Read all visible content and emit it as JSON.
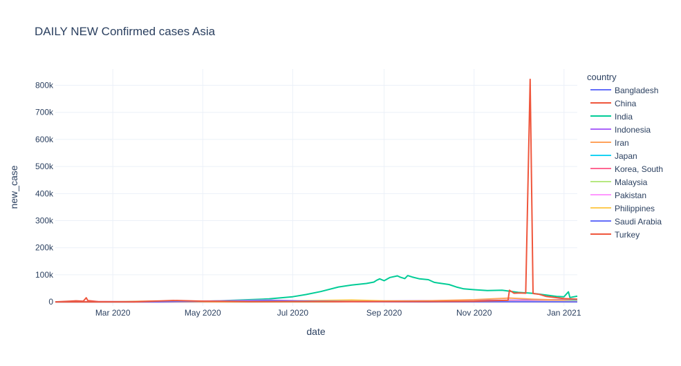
{
  "chart_data": {
    "type": "line",
    "title": "DAILY NEW Confirmed cases Asia",
    "xlabel": "date",
    "ylabel": "new_case",
    "x_range": [
      "2020-01-22",
      "2021-01-10"
    ],
    "ylim": [
      -15000,
      860000
    ],
    "x_ticks": [
      {
        "date": "2020-03-01",
        "label": "Mar 2020"
      },
      {
        "date": "2020-05-01",
        "label": "May 2020"
      },
      {
        "date": "2020-07-01",
        "label": "Jul 2020"
      },
      {
        "date": "2020-09-01",
        "label": "Sep 2020"
      },
      {
        "date": "2020-11-01",
        "label": "Nov 2020"
      },
      {
        "date": "2021-01-01",
        "label": "Jan 2021"
      }
    ],
    "y_ticks": [
      {
        "value": 0,
        "label": "0"
      },
      {
        "value": 100000,
        "label": "100k"
      },
      {
        "value": 200000,
        "label": "200k"
      },
      {
        "value": 300000,
        "label": "300k"
      },
      {
        "value": 400000,
        "label": "400k"
      },
      {
        "value": 500000,
        "label": "500k"
      },
      {
        "value": 600000,
        "label": "600k"
      },
      {
        "value": 700000,
        "label": "700k"
      },
      {
        "value": 800000,
        "label": "800k"
      }
    ],
    "grid": true,
    "legend_title": "country",
    "legend_position": "right",
    "series": [
      {
        "name": "Bangladesh",
        "color": "#636efa",
        "points": [
          [
            "2020-01-22",
            0
          ],
          [
            "2020-04-01",
            0
          ],
          [
            "2020-05-01",
            600
          ],
          [
            "2020-06-01",
            2500
          ],
          [
            "2020-07-01",
            3800
          ],
          [
            "2020-08-01",
            2700
          ],
          [
            "2020-09-01",
            2000
          ],
          [
            "2020-10-01",
            1400
          ],
          [
            "2020-11-01",
            1700
          ],
          [
            "2020-12-01",
            2200
          ],
          [
            "2021-01-10",
            800
          ]
        ]
      },
      {
        "name": "China",
        "color": "#ef553b",
        "points": [
          [
            "2020-01-22",
            100
          ],
          [
            "2020-02-01",
            2600
          ],
          [
            "2020-02-05",
            3800
          ],
          [
            "2020-02-10",
            2500
          ],
          [
            "2020-02-12",
            15000
          ],
          [
            "2020-02-13",
            5000
          ],
          [
            "2020-02-20",
            800
          ],
          [
            "2020-03-01",
            200
          ],
          [
            "2020-04-01",
            50
          ],
          [
            "2020-06-01",
            20
          ],
          [
            "2020-09-01",
            20
          ],
          [
            "2020-12-01",
            20
          ],
          [
            "2021-01-10",
            100
          ]
        ]
      },
      {
        "name": "India",
        "color": "#00cc96",
        "points": [
          [
            "2020-01-22",
            0
          ],
          [
            "2020-03-01",
            0
          ],
          [
            "2020-04-01",
            400
          ],
          [
            "2020-05-01",
            1800
          ],
          [
            "2020-06-01",
            8000
          ],
          [
            "2020-06-15",
            11000
          ],
          [
            "2020-07-01",
            19000
          ],
          [
            "2020-07-10",
            27000
          ],
          [
            "2020-07-20",
            38000
          ],
          [
            "2020-08-01",
            55000
          ],
          [
            "2020-08-10",
            62000
          ],
          [
            "2020-08-20",
            68000
          ],
          [
            "2020-08-25",
            73000
          ],
          [
            "2020-08-27",
            80000
          ],
          [
            "2020-08-29",
            85000
          ],
          [
            "2020-09-01",
            78000
          ],
          [
            "2020-09-05",
            90000
          ],
          [
            "2020-09-10",
            96000
          ],
          [
            "2020-09-12",
            91000
          ],
          [
            "2020-09-15",
            86000
          ],
          [
            "2020-09-17",
            97000
          ],
          [
            "2020-09-20",
            92000
          ],
          [
            "2020-09-25",
            85000
          ],
          [
            "2020-10-01",
            82000
          ],
          [
            "2020-10-05",
            72000
          ],
          [
            "2020-10-10",
            68000
          ],
          [
            "2020-10-15",
            64000
          ],
          [
            "2020-10-20",
            55000
          ],
          [
            "2020-10-25",
            48000
          ],
          [
            "2020-11-01",
            45000
          ],
          [
            "2020-11-10",
            42000
          ],
          [
            "2020-11-20",
            43000
          ],
          [
            "2020-12-01",
            35000
          ],
          [
            "2020-12-10",
            32000
          ],
          [
            "2020-12-20",
            25000
          ],
          [
            "2020-12-27",
            20000
          ],
          [
            "2021-01-01",
            19000
          ],
          [
            "2021-01-04",
            37000
          ],
          [
            "2021-01-05",
            16000
          ],
          [
            "2021-01-10",
            21000
          ]
        ]
      },
      {
        "name": "Indonesia",
        "color": "#ab63fa",
        "points": [
          [
            "2020-01-22",
            0
          ],
          [
            "2020-04-01",
            100
          ],
          [
            "2020-06-01",
            700
          ],
          [
            "2020-08-01",
            2000
          ],
          [
            "2020-10-01",
            4200
          ],
          [
            "2020-12-01",
            6300
          ],
          [
            "2021-01-10",
            9000
          ]
        ]
      },
      {
        "name": "Iran",
        "color": "#ffa15a",
        "points": [
          [
            "2020-01-22",
            0
          ],
          [
            "2020-02-25",
            100
          ],
          [
            "2020-03-30",
            3100
          ],
          [
            "2020-04-15",
            1500
          ],
          [
            "2020-06-01",
            3000
          ],
          [
            "2020-07-01",
            2500
          ],
          [
            "2020-08-01",
            2500
          ],
          [
            "2020-09-01",
            2000
          ],
          [
            "2020-10-01",
            4000
          ],
          [
            "2020-11-01",
            8000
          ],
          [
            "2020-11-25",
            14000
          ],
          [
            "2020-12-10",
            10000
          ],
          [
            "2021-01-01",
            6000
          ],
          [
            "2021-01-10",
            6000
          ]
        ]
      },
      {
        "name": "Japan",
        "color": "#19d3f3",
        "points": [
          [
            "2020-01-22",
            0
          ],
          [
            "2020-04-10",
            600
          ],
          [
            "2020-06-01",
            50
          ],
          [
            "2020-08-01",
            1500
          ],
          [
            "2020-10-01",
            500
          ],
          [
            "2020-12-01",
            2000
          ],
          [
            "2021-01-01",
            3000
          ],
          [
            "2021-01-10",
            6000
          ]
        ]
      },
      {
        "name": "Korea, South",
        "color": "#ff6692",
        "points": [
          [
            "2020-01-22",
            0
          ],
          [
            "2020-02-29",
            900
          ],
          [
            "2020-03-15",
            100
          ],
          [
            "2020-06-01",
            50
          ],
          [
            "2020-08-27",
            400
          ],
          [
            "2020-10-01",
            100
          ],
          [
            "2020-12-25",
            1200
          ],
          [
            "2021-01-10",
            600
          ]
        ]
      },
      {
        "name": "Malaysia",
        "color": "#b6e880",
        "points": [
          [
            "2020-01-22",
            0
          ],
          [
            "2020-04-01",
            200
          ],
          [
            "2020-06-01",
            20
          ],
          [
            "2020-10-15",
            800
          ],
          [
            "2020-12-15",
            1700
          ],
          [
            "2021-01-10",
            3000
          ]
        ]
      },
      {
        "name": "Pakistan",
        "color": "#ff97ff",
        "points": [
          [
            "2020-01-22",
            0
          ],
          [
            "2020-04-01",
            200
          ],
          [
            "2020-06-15",
            6800
          ],
          [
            "2020-08-01",
            500
          ],
          [
            "2020-10-01",
            600
          ],
          [
            "2020-12-01",
            3000
          ],
          [
            "2021-01-10",
            2300
          ]
        ]
      },
      {
        "name": "Philippines",
        "color": "#fecb52",
        "points": [
          [
            "2020-01-22",
            0
          ],
          [
            "2020-04-01",
            300
          ],
          [
            "2020-06-01",
            600
          ],
          [
            "2020-08-10",
            6900
          ],
          [
            "2020-09-01",
            3500
          ],
          [
            "2020-10-01",
            2500
          ],
          [
            "2020-12-01",
            1300
          ],
          [
            "2021-01-10",
            1500
          ]
        ]
      },
      {
        "name": "Saudi Arabia",
        "color": "#636efa",
        "points": [
          [
            "2020-01-22",
            0
          ],
          [
            "2020-04-01",
            300
          ],
          [
            "2020-05-15",
            2800
          ],
          [
            "2020-06-15",
            4900
          ],
          [
            "2020-07-15",
            2500
          ],
          [
            "2020-08-15",
            1300
          ],
          [
            "2020-10-01",
            400
          ],
          [
            "2020-12-01",
            200
          ],
          [
            "2021-01-10",
            100
          ]
        ]
      },
      {
        "name": "Turkey",
        "color": "#ef553b",
        "points": [
          [
            "2020-01-22",
            0
          ],
          [
            "2020-03-15",
            50
          ],
          [
            "2020-04-11",
            5100
          ],
          [
            "2020-05-01",
            2500
          ],
          [
            "2020-06-01",
            900
          ],
          [
            "2020-07-01",
            1200
          ],
          [
            "2020-08-01",
            1000
          ],
          [
            "2020-09-01",
            1500
          ],
          [
            "2020-10-01",
            1600
          ],
          [
            "2020-11-01",
            2200
          ],
          [
            "2020-11-24",
            6000
          ],
          [
            "2020-11-25",
            43000
          ],
          [
            "2020-11-28",
            32000
          ],
          [
            "2020-12-02",
            33000
          ],
          [
            "2020-12-06",
            32000
          ],
          [
            "2020-12-09",
            822000
          ],
          [
            "2020-12-11",
            31000
          ],
          [
            "2020-12-15",
            28000
          ],
          [
            "2020-12-20",
            20000
          ],
          [
            "2021-01-01",
            12000
          ],
          [
            "2021-01-10",
            10000
          ]
        ]
      }
    ]
  }
}
